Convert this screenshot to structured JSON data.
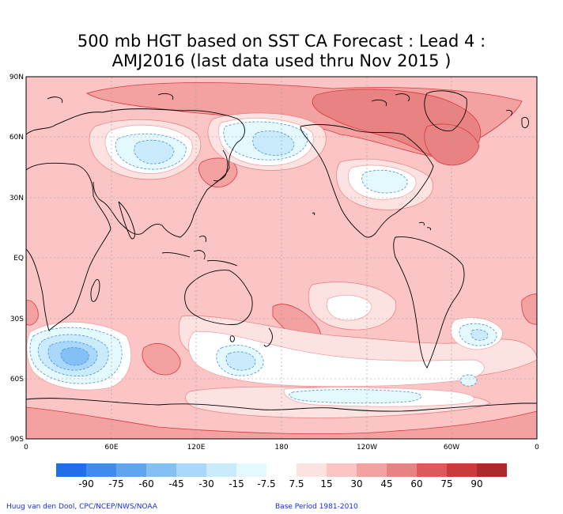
{
  "title": {
    "line1": "500 mb HGT based on SST CA Forecast : Lead 4 :",
    "line2": "AMJ2016 (last data used thru Nov 2015 )"
  },
  "map": {
    "projection": "equirectangular global, 0 to 360 longitude, 90S to 90N",
    "lat_labels": [
      "90N",
      "60N",
      "30N",
      "EQ",
      "30S",
      "60S",
      "90S"
    ],
    "lon_labels": [
      "0",
      "60E",
      "120E",
      "180",
      "120W",
      "60W",
      "0"
    ],
    "background_anomaly_color": "#fac5c4",
    "coastline_color": "#000000"
  },
  "colorbar": {
    "labels": [
      "-90",
      "-75",
      "-60",
      "-45",
      "-30",
      "-15",
      "-7.5",
      "7.5",
      "15",
      "30",
      "45",
      "60",
      "75",
      "90"
    ],
    "colors": [
      "#1f6fe8",
      "#3f8cef",
      "#5ea6f2",
      "#83c0f6",
      "#a9d8fa",
      "#c9ebfb",
      "#e4f9fd",
      "#ffffff",
      "#fde2e2",
      "#fac5c4",
      "#f3a2a1",
      "#e98383",
      "#dd5a5a",
      "#c83c3c",
      "#ad2a2a"
    ]
  },
  "footer": {
    "credit": "Huug van den Dool, CPC/NCEP/NWS/NOAA",
    "base_period": "Base Period 1981-2010"
  }
}
